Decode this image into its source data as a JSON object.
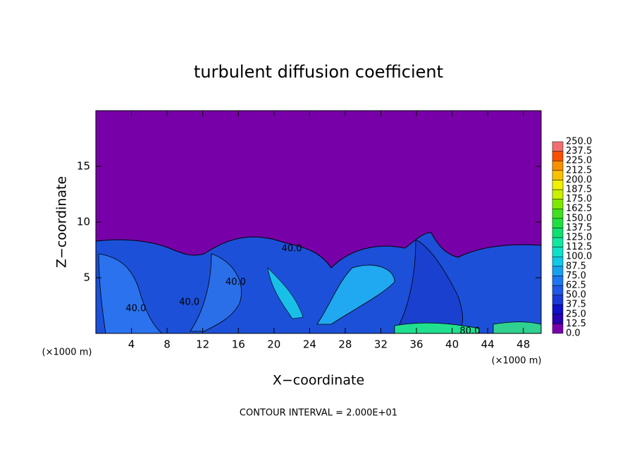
{
  "chart_data": {
    "type": "contour",
    "title": "turbulent diffusion coefficient",
    "x_label": "X−coordinate",
    "y_label": "Z−coordinate",
    "x_unit_left": "(×1000 m)",
    "x_unit_right": "(×1000 m)",
    "footer": "CONTOUR INTERVAL = 2.000E+01",
    "xlim": [
      0,
      50
    ],
    "xticks": [
      4,
      8,
      12,
      16,
      20,
      24,
      28,
      32,
      36,
      40,
      44,
      48
    ],
    "ylim": [
      0,
      20
    ],
    "yticks": [
      5,
      10,
      15
    ],
    "levels": [
      {
        "value": 0,
        "label": "0.0"
      },
      {
        "value": 12.5,
        "label": "12.5"
      },
      {
        "value": 25,
        "label": "25.0"
      },
      {
        "value": 37.5,
        "label": "37.5"
      },
      {
        "value": 50,
        "label": "50.0"
      },
      {
        "value": 62.5,
        "label": "62.5"
      },
      {
        "value": 75,
        "label": "75.0"
      },
      {
        "value": 87.5,
        "label": "87.5"
      },
      {
        "value": 100,
        "label": "100.0"
      },
      {
        "value": 112.5,
        "label": "112.5"
      },
      {
        "value": 125,
        "label": "125.0"
      },
      {
        "value": 137.5,
        "label": "137.5"
      },
      {
        "value": 150,
        "label": "150.0"
      },
      {
        "value": 162.5,
        "label": "162.5"
      },
      {
        "value": 175,
        "label": "175.0"
      },
      {
        "value": 187.5,
        "label": "187.5"
      },
      {
        "value": 200,
        "label": "200.0"
      },
      {
        "value": 212.5,
        "label": "212.5"
      },
      {
        "value": 225,
        "label": "225.0"
      },
      {
        "value": 237.5,
        "label": "237.5"
      },
      {
        "value": 250,
        "label": "250.0"
      }
    ],
    "level_colors": [
      "#7800a8",
      "#2800b0",
      "#1010c8",
      "#1a38d8",
      "#1e58e6",
      "#1c78f0",
      "#18a0f0",
      "#10c8e8",
      "#10e0c8",
      "#10e8a0",
      "#10e070",
      "#20e040",
      "#40e020",
      "#80e800",
      "#c8f000",
      "#f0f000",
      "#f8c000",
      "#f89000",
      "#f85000",
      "#f07070"
    ],
    "contour_labels": [
      {
        "x": 22,
        "y": 7.6,
        "label": "40.0",
        "value": 40
      },
      {
        "x": 4.5,
        "y": 2.2,
        "label": "40.0",
        "value": 40
      },
      {
        "x": 10.5,
        "y": 2.8,
        "label": "40.0",
        "value": 40
      },
      {
        "x": 15.7,
        "y": 4.6,
        "label": "40.0",
        "value": 40
      },
      {
        "x": 42,
        "y": 0.2,
        "label": "80.0",
        "value": 80
      }
    ]
  }
}
